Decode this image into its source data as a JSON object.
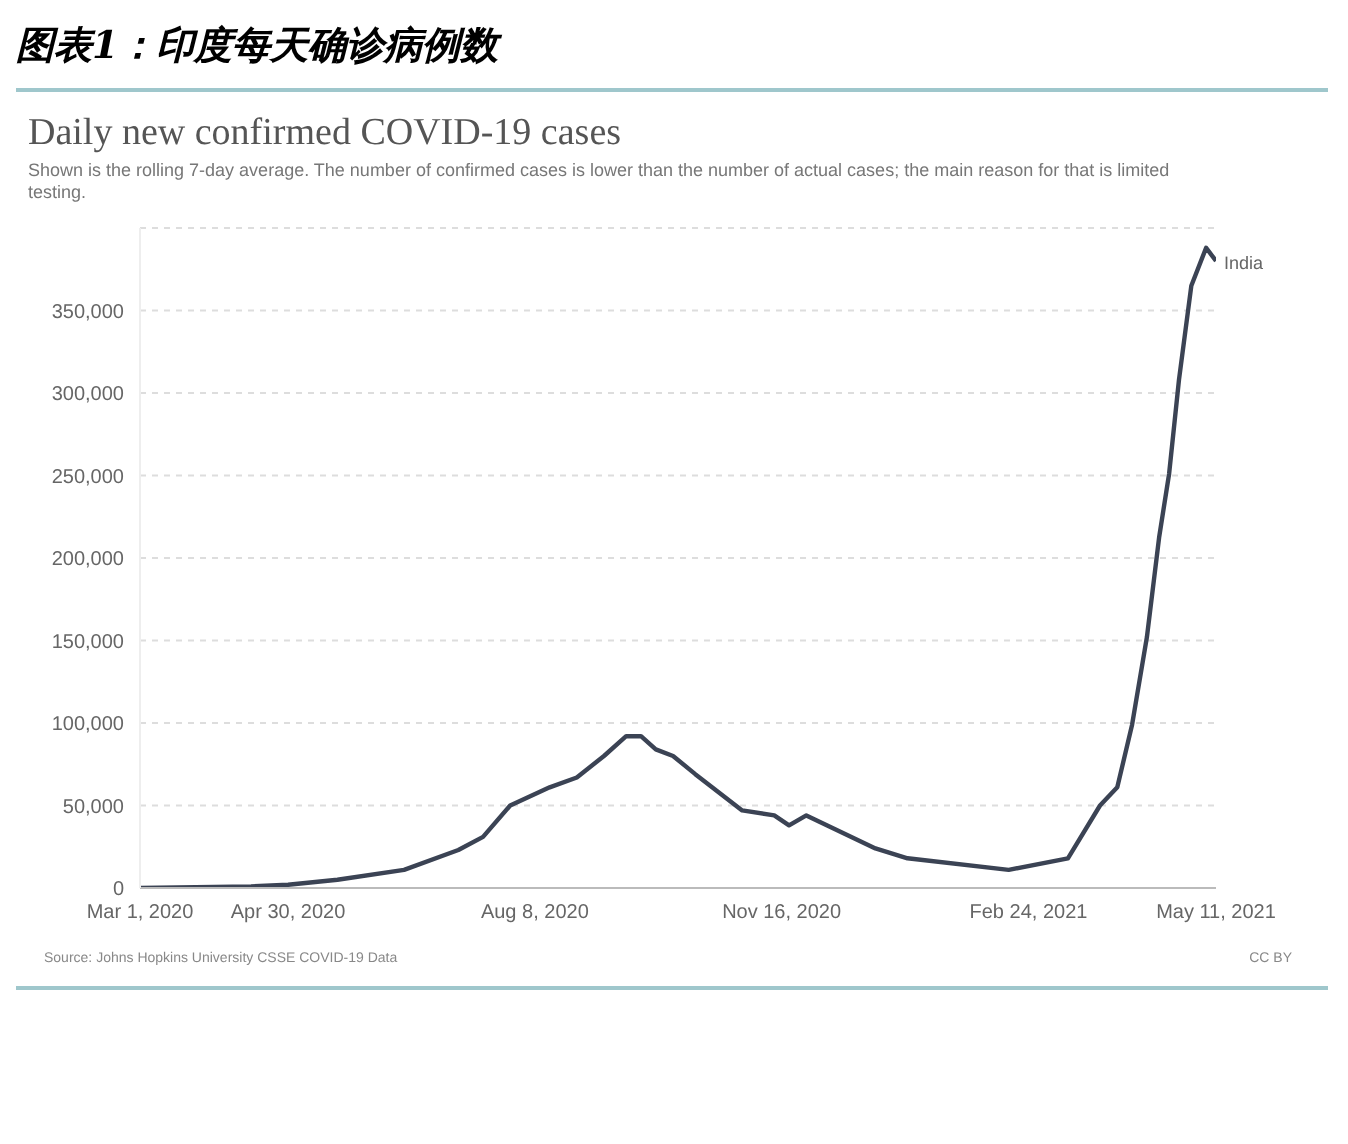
{
  "chart_data": {
    "type": "line",
    "title": "图表1：印度每天确诊病例数",
    "subtitle": "Daily new confirmed COVID-19 cases",
    "annotations": [
      "Shown is the rolling 7-day average. The number of confirmed cases is lower than the number of actual cases; the main reason for that is limited testing.",
      "Source: Johns Hopkins University CSSE COVID-19 Data",
      "CC BY"
    ],
    "x": [
      "2020-03-01",
      "2020-04-15",
      "2020-04-30",
      "2020-05-20",
      "2020-06-16",
      "2020-07-08",
      "2020-07-18",
      "2020-07-29",
      "2020-08-14",
      "2020-08-25",
      "2020-09-05",
      "2020-09-14",
      "2020-09-20",
      "2020-09-26",
      "2020-10-03",
      "2020-10-12",
      "2020-10-31",
      "2020-11-13",
      "2020-11-19",
      "2020-11-26",
      "2020-12-24",
      "2021-01-06",
      "2021-02-16",
      "2021-03-12",
      "2021-03-25",
      "2021-04-01",
      "2021-04-07",
      "2021-04-13",
      "2021-04-18",
      "2021-04-22",
      "2021-04-26",
      "2021-05-01",
      "2021-05-07",
      "2021-05-11"
    ],
    "series": [
      {
        "name": "India",
        "color": "#3b4354",
        "values": [
          0,
          1000,
          2000,
          5000,
          11000,
          23000,
          31000,
          50000,
          61000,
          67000,
          80000,
          92000,
          92000,
          84000,
          80000,
          69000,
          47000,
          44000,
          38000,
          44000,
          24000,
          18000,
          11000,
          18000,
          50000,
          61000,
          99000,
          152000,
          213000,
          251000,
          308000,
          365000,
          388000,
          380000
        ]
      }
    ],
    "xlim": [
      "2020-03-01",
      "2021-05-11"
    ],
    "xticks": [
      {
        "value": "2020-03-01",
        "label": "Mar 1, 2020"
      },
      {
        "value": "2020-04-30",
        "label": "Apr 30, 2020"
      },
      {
        "value": "2020-08-08",
        "label": "Aug 8, 2020"
      },
      {
        "value": "2020-11-16",
        "label": "Nov 16, 2020"
      },
      {
        "value": "2021-02-24",
        "label": "Feb 24, 2021"
      },
      {
        "value": "2021-05-11",
        "label": "May 11, 2021"
      }
    ],
    "ylim": [
      0,
      400000
    ],
    "yticks": [
      0,
      {
        "value": 50000,
        "label": "50,000"
      },
      {
        "value": 100000,
        "label": "100,000"
      },
      {
        "value": 150000,
        "label": "150,000"
      },
      {
        "value": 200000,
        "label": "200,000"
      },
      {
        "value": 250000,
        "label": "250,000"
      },
      {
        "value": 300000,
        "label": "300,000"
      },
      {
        "value": 350000,
        "label": "350,000"
      }
    ],
    "grid": "y",
    "marker": "none",
    "line_style": "solid"
  }
}
